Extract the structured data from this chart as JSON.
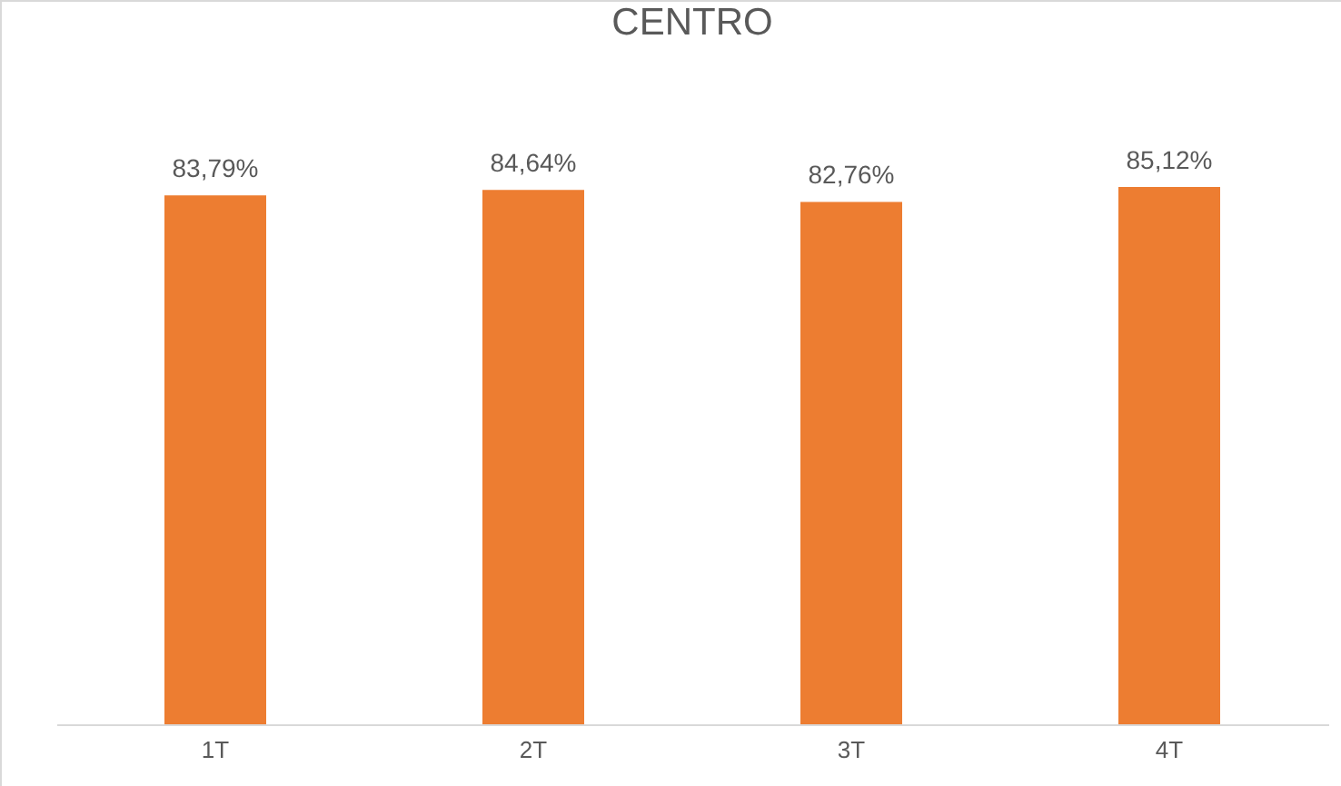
{
  "chart_data": {
    "type": "bar",
    "title": "CENTRO",
    "categories": [
      "1T",
      "2T",
      "3T",
      "4T"
    ],
    "values": [
      83.79,
      84.64,
      82.76,
      85.12
    ],
    "value_labels": [
      "83,79%",
      "84,64%",
      "82,76%",
      "85,12%"
    ],
    "color": "#ed7d31"
  }
}
